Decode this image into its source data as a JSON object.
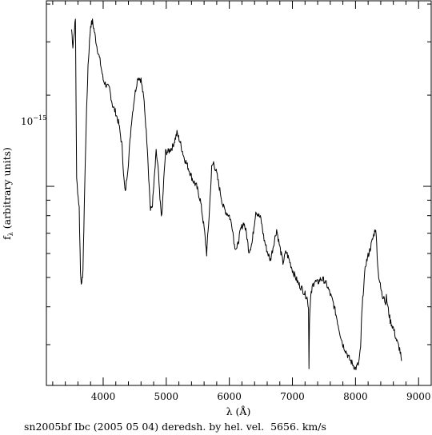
{
  "chart_data": {
    "type": "line",
    "title": "",
    "caption": "sn2005bf Ibc (2005 05 04) deredsh. by hel. vel.  5656. km/s",
    "xlabel": "λ (Å)",
    "ylabel": "f",
    "ylabel_sub": "λ",
    "ylabel_rest": " (arbitrary units)",
    "y_major_tick_label": "10",
    "y_major_tick_exp": "−15",
    "y_major_tick_value": 1e-15,
    "x_scale": "linear",
    "y_scale": "log",
    "xlim": [
      3100,
      9200
    ],
    "ylim": [
      2.2e-16,
      4.1e-15
    ],
    "x_ticks": [
      4000,
      5000,
      6000,
      7000,
      8000,
      9000
    ],
    "x_tick_labels": [
      "4000",
      "5000",
      "6000",
      "7000",
      "8000",
      "9000"
    ],
    "grid": false,
    "legend": "none",
    "series": [
      {
        "x": [
          3500,
          3520,
          3560,
          3580,
          3620,
          3640,
          3660,
          3680,
          3700,
          3730,
          3760,
          3800,
          3830,
          3860,
          3900,
          3950,
          4000,
          4050,
          4100,
          4150,
          4200,
          4250,
          4300,
          4330,
          4350,
          4400,
          4450,
          4500,
          4550,
          4600,
          4650,
          4700,
          4730,
          4750,
          4780,
          4810,
          4840,
          4870,
          4900,
          4930,
          4960,
          4990,
          5030,
          5100,
          5170,
          5220,
          5280,
          5350,
          5420,
          5480,
          5540,
          5600,
          5640,
          5680,
          5720,
          5750,
          5800,
          5850,
          5900,
          5950,
          6000,
          6050,
          6080,
          6120,
          6180,
          6230,
          6270,
          6310,
          6360,
          6420,
          6500,
          6550,
          6600,
          6650,
          6700,
          6750,
          6800,
          6850,
          6900,
          6950,
          7000,
          7050,
          7100,
          7150,
          7200,
          7230,
          7255,
          7262,
          7270,
          7290,
          7320,
          7350,
          7400,
          7450,
          7500,
          7550,
          7600,
          7650,
          7700,
          7750,
          7800,
          7850,
          7900,
          7950,
          8000,
          8050,
          8080,
          8100,
          8130,
          8160,
          8200,
          8240,
          8280,
          8320,
          8360,
          8400,
          8430,
          8450,
          8470,
          8490,
          8520,
          8550,
          8600,
          8650,
          8700,
          8730
        ],
        "y": [
          3.3e-15,
          2.9e-15,
          3.55e-15,
          1.05e-15,
          8.5e-16,
          5.2e-16,
          4.7e-16,
          5.3e-16,
          8.5e-16,
          1.6e-15,
          2.5e-15,
          3.4e-15,
          3.5e-15,
          3.25e-15,
          2.9e-15,
          2.6e-15,
          2.25e-15,
          2.15e-15,
          2.1e-15,
          1.85e-15,
          1.75e-15,
          1.6e-15,
          1.35e-15,
          1.05e-15,
          9.5e-16,
          1.2e-15,
          1.65e-15,
          2e-15,
          2.3e-15,
          2.25e-15,
          1.9e-15,
          1.35e-15,
          1e-15,
          8.3e-16,
          8.7e-16,
          1.05e-15,
          1.3e-15,
          1.15e-15,
          9e-16,
          7.9e-16,
          1.05e-15,
          1.3e-15,
          1.3e-15,
          1.35e-15,
          1.5e-15,
          1.4e-15,
          1.25e-15,
          1.15e-15,
          1.05e-15,
          1e-15,
          9e-16,
          7.3e-16,
          6e-16,
          8e-16,
          1.15e-15,
          1.2e-15,
          1.1e-15,
          9.7e-16,
          8.6e-16,
          8.2e-16,
          8e-16,
          7.3e-16,
          6.4e-16,
          6.2e-16,
          7.2e-16,
          7.6e-16,
          7e-16,
          6.1e-16,
          6.5e-16,
          8.3e-16,
          7.8e-16,
          6.7e-16,
          6.1e-16,
          5.7e-16,
          6.4e-16,
          7.2e-16,
          6.3e-16,
          5.6e-16,
          6.1e-16,
          5.7e-16,
          5.3e-16,
          5e-16,
          4.75e-16,
          4.6e-16,
          4.4e-16,
          4.3e-16,
          4e-16,
          2.55e-16,
          3.6e-16,
          4.3e-16,
          4.7e-16,
          4.85e-16,
          4.8e-16,
          4.95e-16,
          4.9e-16,
          4.7e-16,
          4.4e-16,
          4.1e-16,
          3.7e-16,
          3.3e-16,
          3e-16,
          2.85e-16,
          2.7e-16,
          2.6e-16,
          2.5e-16,
          2.6e-16,
          2.9e-16,
          3.8e-16,
          4.7e-16,
          5.5e-16,
          5.9e-16,
          6.3e-16,
          6.8e-16,
          7.3e-16,
          5.2e-16,
          4.6e-16,
          4.3e-16,
          4.4e-16,
          4.1e-16,
          4.3e-16,
          3.9e-16,
          3.6e-16,
          3.4e-16,
          3.1e-16,
          2.9e-16,
          2.65e-16
        ]
      }
    ]
  }
}
